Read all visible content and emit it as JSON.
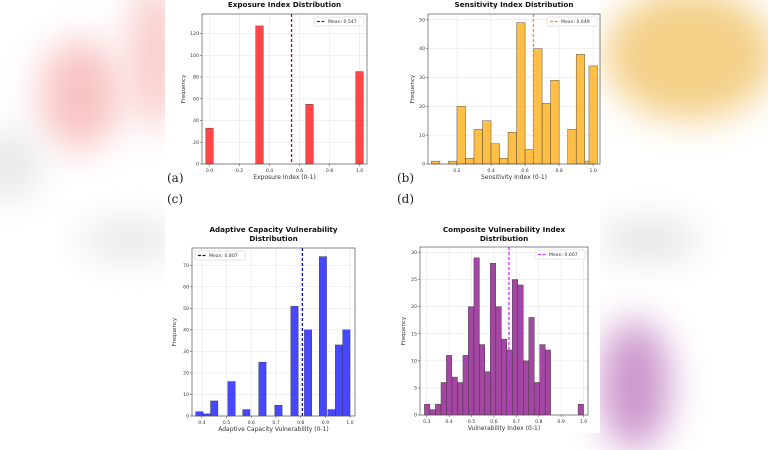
{
  "figure_labels": [
    "(a)",
    "(b)",
    "(c)",
    "(d)"
  ],
  "chart_data": [
    {
      "id": "exposure",
      "type": "bar",
      "title": "Exposure Index Distribution",
      "xlabel": "Exposure Index (0-1)",
      "ylabel": "Frequency",
      "color": "#ff3333",
      "mean_color": "#cc0000",
      "legend": "Mean: 0.547",
      "legend_position": "top-right",
      "mean": 0.547,
      "xlim": [
        -0.05,
        1.05
      ],
      "ylim": [
        0,
        138
      ],
      "xticks": [
        0.0,
        0.2,
        0.4,
        0.6,
        0.8,
        1.0
      ],
      "xtick_labels": [
        "0.0",
        "0.2",
        "0.4",
        "0.6",
        "0.8",
        "1.0"
      ],
      "yticks": [
        0,
        20,
        40,
        60,
        80,
        100,
        120
      ],
      "bin_width": 0.05,
      "bins": [
        {
          "x": 0.0,
          "value": 33
        },
        {
          "x": 0.333,
          "value": 127
        },
        {
          "x": 0.667,
          "value": 55
        },
        {
          "x": 1.0,
          "value": 85
        }
      ],
      "grid": true
    },
    {
      "id": "sensitivity",
      "type": "bar",
      "title": "Sensitivity Index Distribution",
      "xlabel": "Sensitivity Index (0-1)",
      "ylabel": "Frequency",
      "color": "#ffb833",
      "mean_color": "#ff8c1a",
      "legend": "Mean: 0.649",
      "legend_position": "top-right",
      "mean": 0.649,
      "xlim": [
        0.03,
        1.04
      ],
      "ylim": [
        0,
        52
      ],
      "xticks": [
        0.2,
        0.4,
        0.6,
        0.8,
        1.0
      ],
      "xtick_labels": [
        "0.2",
        "0.4",
        "0.6",
        "0.8",
        "1.0"
      ],
      "yticks": [
        0,
        10,
        20,
        30,
        40,
        50
      ],
      "bin_width": 0.05,
      "bins": [
        {
          "x": 0.075,
          "value": 1
        },
        {
          "x": 0.175,
          "value": 1
        },
        {
          "x": 0.225,
          "value": 20
        },
        {
          "x": 0.275,
          "value": 2
        },
        {
          "x": 0.325,
          "value": 12
        },
        {
          "x": 0.375,
          "value": 15
        },
        {
          "x": 0.425,
          "value": 7
        },
        {
          "x": 0.475,
          "value": 2
        },
        {
          "x": 0.525,
          "value": 11
        },
        {
          "x": 0.575,
          "value": 49
        },
        {
          "x": 0.625,
          "value": 5
        },
        {
          "x": 0.675,
          "value": 40
        },
        {
          "x": 0.725,
          "value": 21
        },
        {
          "x": 0.775,
          "value": 29
        },
        {
          "x": 0.875,
          "value": 12
        },
        {
          "x": 0.925,
          "value": 38
        },
        {
          "x": 0.975,
          "value": 1
        },
        {
          "x": 1.0,
          "value": 34
        }
      ],
      "grid": true
    },
    {
      "id": "adaptive",
      "type": "bar",
      "title": "Adaptive Capacity Vulnerability\nDistribution",
      "xlabel": "Adaptive Capacity Vulnerability (0-1)",
      "ylabel": "Frequency",
      "color": "#3333ff",
      "mean_color": "#0000cc",
      "legend": "Mean: 0.807",
      "legend_position": "top-left",
      "mean": 0.807,
      "xlim": [
        0.36,
        1.02
      ],
      "ylim": [
        0,
        78
      ],
      "xticks": [
        0.4,
        0.5,
        0.6,
        0.7,
        0.8,
        0.9,
        1.0
      ],
      "xtick_labels": [
        "0.4",
        "0.5",
        "0.6",
        "0.7",
        "0.8",
        "0.9",
        "1.0"
      ],
      "yticks": [
        0,
        10,
        20,
        30,
        40,
        50,
        60,
        70
      ],
      "bin_width": 0.03,
      "bins": [
        {
          "x": 0.39,
          "value": 2
        },
        {
          "x": 0.42,
          "value": 1
        },
        {
          "x": 0.45,
          "value": 7
        },
        {
          "x": 0.52,
          "value": 16
        },
        {
          "x": 0.58,
          "value": 3
        },
        {
          "x": 0.645,
          "value": 25
        },
        {
          "x": 0.71,
          "value": 5
        },
        {
          "x": 0.775,
          "value": 51
        },
        {
          "x": 0.83,
          "value": 40
        },
        {
          "x": 0.89,
          "value": 74
        },
        {
          "x": 0.925,
          "value": 3
        },
        {
          "x": 0.955,
          "value": 33
        },
        {
          "x": 0.985,
          "value": 40
        }
      ],
      "grid": true
    },
    {
      "id": "composite",
      "type": "bar",
      "title": "Composite Vulnerability Index\nDistribution",
      "xlabel": "Vulnerability Index (0-1)",
      "ylabel": "Frequency",
      "color": "#993399",
      "mean_color": "#cc33ff",
      "legend": "Mean: 0.667",
      "legend_position": "top-right",
      "mean": 0.667,
      "xlim": [
        0.27,
        1.02
      ],
      "ylim": [
        0,
        31
      ],
      "xticks": [
        0.3,
        0.4,
        0.5,
        0.6,
        0.7,
        0.8,
        0.9,
        1.0
      ],
      "xtick_labels": [
        "0.3",
        "0.4",
        "0.5",
        "0.6",
        "0.7",
        "0.8",
        "0.9",
        "1.0"
      ],
      "yticks": [
        0,
        5,
        10,
        15,
        20,
        25,
        30
      ],
      "bin_width": 0.0245,
      "bins": [
        {
          "x": 0.302,
          "value": 2
        },
        {
          "x": 0.327,
          "value": 1
        },
        {
          "x": 0.351,
          "value": 2
        },
        {
          "x": 0.376,
          "value": 6
        },
        {
          "x": 0.4,
          "value": 11
        },
        {
          "x": 0.425,
          "value": 7
        },
        {
          "x": 0.449,
          "value": 6
        },
        {
          "x": 0.474,
          "value": 11
        },
        {
          "x": 0.498,
          "value": 20
        },
        {
          "x": 0.523,
          "value": 29
        },
        {
          "x": 0.547,
          "value": 13
        },
        {
          "x": 0.572,
          "value": 8
        },
        {
          "x": 0.596,
          "value": 28
        },
        {
          "x": 0.621,
          "value": 20
        },
        {
          "x": 0.645,
          "value": 14
        },
        {
          "x": 0.67,
          "value": 12
        },
        {
          "x": 0.694,
          "value": 25
        },
        {
          "x": 0.719,
          "value": 24
        },
        {
          "x": 0.743,
          "value": 10
        },
        {
          "x": 0.768,
          "value": 18
        },
        {
          "x": 0.792,
          "value": 6
        },
        {
          "x": 0.817,
          "value": 13
        },
        {
          "x": 0.841,
          "value": 12
        },
        {
          "x": 0.988,
          "value": 2
        }
      ],
      "grid": true
    }
  ]
}
